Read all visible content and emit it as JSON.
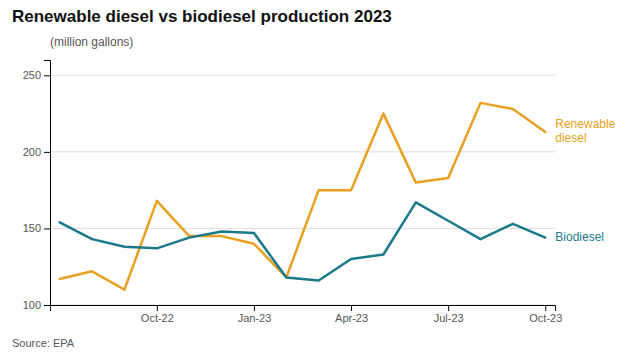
{
  "chart_data": {
    "type": "line",
    "title": "Renewable diesel vs biodiesel production 2023",
    "subtitle": "(million gallons)",
    "annotations": [
      "Source: EPA"
    ],
    "categories": [
      null,
      null,
      null,
      "Oct-22",
      null,
      null,
      "Jan-23",
      null,
      null,
      "Apr-23",
      null,
      null,
      "Jul-23",
      null,
      null,
      "Oct-23"
    ],
    "series": [
      {
        "name": "Renewable\ndiesel",
        "color": "#E8A020",
        "values": [
          117,
          122,
          110,
          168,
          145,
          145,
          140,
          118,
          175,
          175,
          225,
          180,
          183,
          232,
          228,
          213
        ]
      },
      {
        "name": "Biodiesel",
        "color": "#1B7A8A",
        "values": [
          154,
          143,
          138,
          137,
          144,
          148,
          147,
          118,
          116,
          130,
          133,
          167,
          155,
          143,
          153,
          144
        ]
      }
    ],
    "ylim": [
      100,
      260
    ],
    "yticks": [
      100,
      150,
      200,
      250
    ],
    "grid": true
  }
}
